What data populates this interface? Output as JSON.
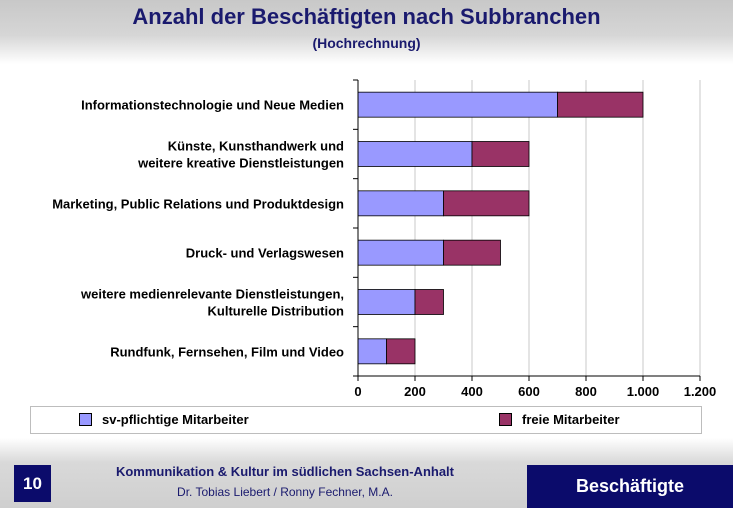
{
  "header": {
    "title": "Anzahl der Beschäftigten nach Subbranchen",
    "subtitle": "(Hochrechnung)"
  },
  "chart_data": {
    "type": "bar",
    "orientation": "horizontal",
    "stacked": true,
    "categories": [
      [
        "Informationstechnologie und Neue Medien"
      ],
      [
        "Künste, Kunsthandwerk und",
        "weitere kreative Dienstleistungen"
      ],
      [
        "Marketing, Public Relations und Produktdesign"
      ],
      [
        "Druck- und Verlagswesen"
      ],
      [
        "weitere medienrelevante Dienstleistungen,",
        "Kulturelle Distribution"
      ],
      [
        "Rundfunk, Fernsehen, Film und Video"
      ]
    ],
    "series": [
      {
        "name": "sv-pflichtige Mitarbeiter",
        "color": "#9999ff",
        "values": [
          700,
          400,
          300,
          300,
          200,
          100
        ]
      },
      {
        "name": "freie Mitarbeiter",
        "color": "#993366",
        "values": [
          300,
          200,
          300,
          200,
          100,
          100
        ]
      }
    ],
    "xlim": [
      0,
      1200
    ],
    "ticks": [
      0,
      200,
      400,
      600,
      800,
      1000,
      1200
    ],
    "tick_labels": [
      "0",
      "200",
      "400",
      "600",
      "800",
      "1.000",
      "1.200"
    ],
    "grid": "vertical",
    "legend_position": "bottom"
  },
  "legend": {
    "items": [
      {
        "label": "sv-pflichtige Mitarbeiter",
        "color": "#9999ff"
      },
      {
        "label": "freie Mitarbeiter",
        "color": "#993366"
      }
    ]
  },
  "footer": {
    "page_number": "10",
    "line1": "Kommunikation & Kultur im südlichen Sachsen-Anhalt",
    "line2": "Dr. Tobias Liebert / Ronny Fechner, M.A.",
    "section": "Beschäftigte"
  }
}
